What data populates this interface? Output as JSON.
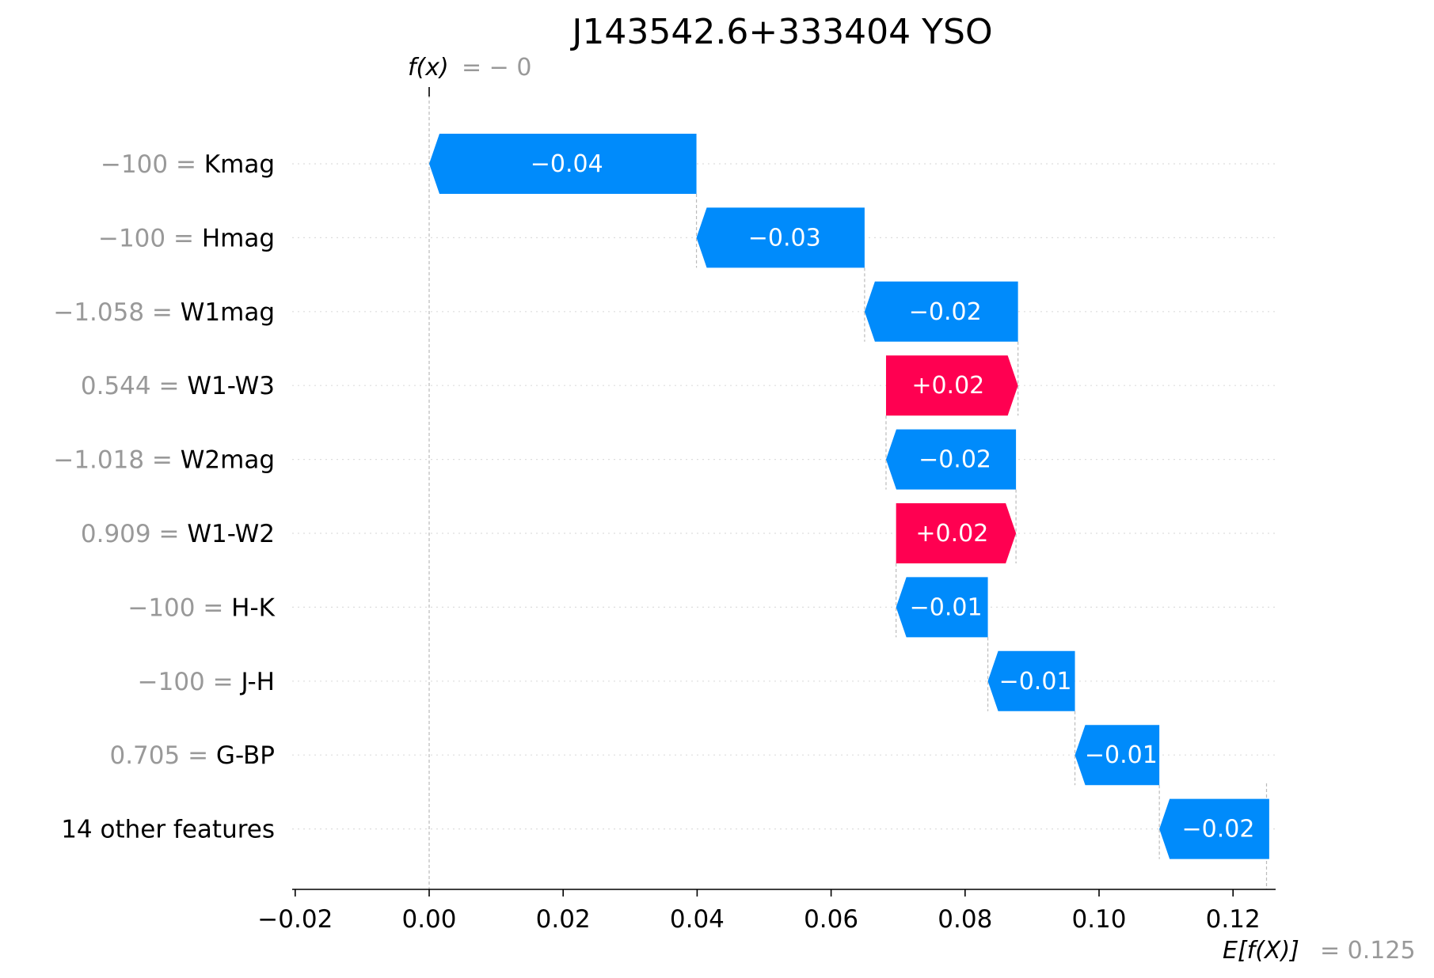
{
  "chart_data": {
    "type": "waterfall",
    "title": "J143542.6+333404 YSO",
    "fx_label": "f(x)",
    "fx_value": "= − 0",
    "ex_label": "E[f(X)]",
    "ex_value": "= 0.125",
    "base_value": 0.125,
    "final_value": 0.0,
    "xlim": [
      -0.02,
      0.125
    ],
    "xticks": [
      -0.02,
      0.0,
      0.02,
      0.04,
      0.06,
      0.08,
      0.1,
      0.12
    ],
    "xtick_labels": [
      "−0.02",
      "0.00",
      "0.02",
      "0.04",
      "0.06",
      "0.08",
      "0.10",
      "0.12"
    ],
    "features": [
      {
        "value": "−100",
        "name": "Kmag",
        "contribution": -0.04,
        "start": 0.0,
        "end": 0.0399,
        "label": "−0.04"
      },
      {
        "value": "−100",
        "name": "Hmag",
        "contribution": -0.03,
        "start": 0.0399,
        "end": 0.065,
        "label": "−0.03"
      },
      {
        "value": "−1.058",
        "name": "W1mag",
        "contribution": -0.02,
        "start": 0.065,
        "end": 0.0879,
        "label": "−0.02"
      },
      {
        "value": "0.544",
        "name": "W1-W3",
        "contribution": 0.02,
        "start": 0.0879,
        "end": 0.0682,
        "label": "+0.02"
      },
      {
        "value": "−1.018",
        "name": "W2mag",
        "contribution": -0.02,
        "start": 0.0682,
        "end": 0.0876,
        "label": "−0.02"
      },
      {
        "value": "0.909",
        "name": "W1-W2",
        "contribution": 0.02,
        "start": 0.0876,
        "end": 0.0697,
        "label": "+0.02"
      },
      {
        "value": "−100",
        "name": "H-K",
        "contribution": -0.01,
        "start": 0.0697,
        "end": 0.0834,
        "label": "−0.01"
      },
      {
        "value": "−100",
        "name": "J-H",
        "contribution": -0.01,
        "start": 0.0834,
        "end": 0.0964,
        "label": "−0.01"
      },
      {
        "value": "0.705",
        "name": "G-BP",
        "contribution": -0.01,
        "start": 0.0964,
        "end": 0.109,
        "label": "−0.01"
      },
      {
        "value": "",
        "name": "14 other features",
        "contribution": -0.02,
        "start": 0.109,
        "end": 0.1254,
        "label": "−0.02"
      }
    ],
    "colors": {
      "negative": "#008bfb",
      "positive": "#ff0051",
      "value_text": "#999999",
      "name_text": "#000000"
    }
  }
}
